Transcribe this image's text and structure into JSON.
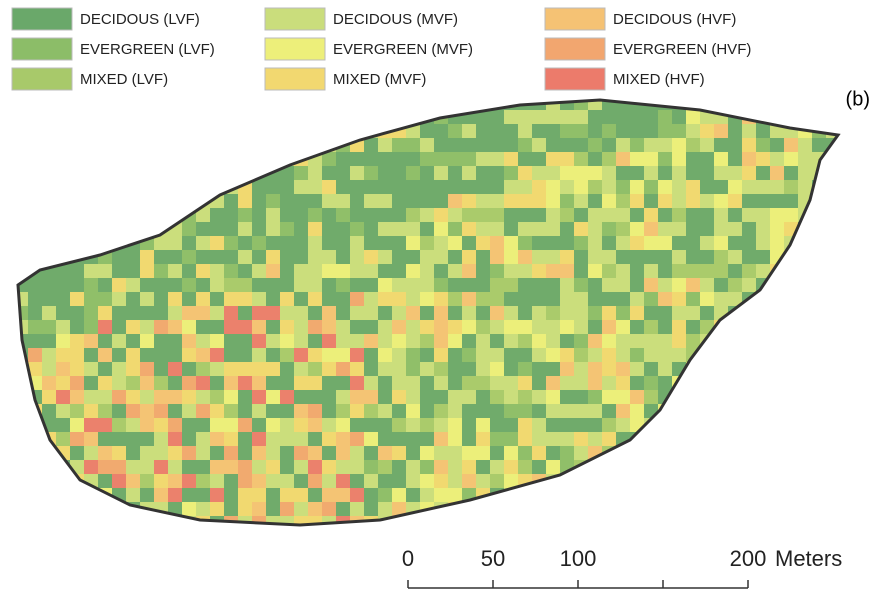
{
  "legend": {
    "items": [
      {
        "label": "DECIDOUS (LVF)",
        "color": "#6aa86a"
      },
      {
        "label": "EVERGREEN (LVF)",
        "color": "#8cbd68"
      },
      {
        "label": "MIXED (LVF)",
        "color": "#a8c96a"
      },
      {
        "label": "DECIDOUS (MVF)",
        "color": "#cadd7c"
      },
      {
        "label": "EVERGREEN (MVF)",
        "color": "#edef7a"
      },
      {
        "label": "MIXED (MVF)",
        "color": "#f2d870"
      },
      {
        "label": "DECIDOUS (HVF)",
        "color": "#f5c274"
      },
      {
        "label": "EVERGREEN (HVF)",
        "color": "#f2a66f"
      },
      {
        "label": "MIXED (HVF)",
        "color": "#ec7b6b"
      }
    ]
  },
  "panel_label": "(b)",
  "scale_bar": {
    "ticks": [
      0,
      50,
      100,
      200
    ],
    "unit": "Meters"
  }
}
